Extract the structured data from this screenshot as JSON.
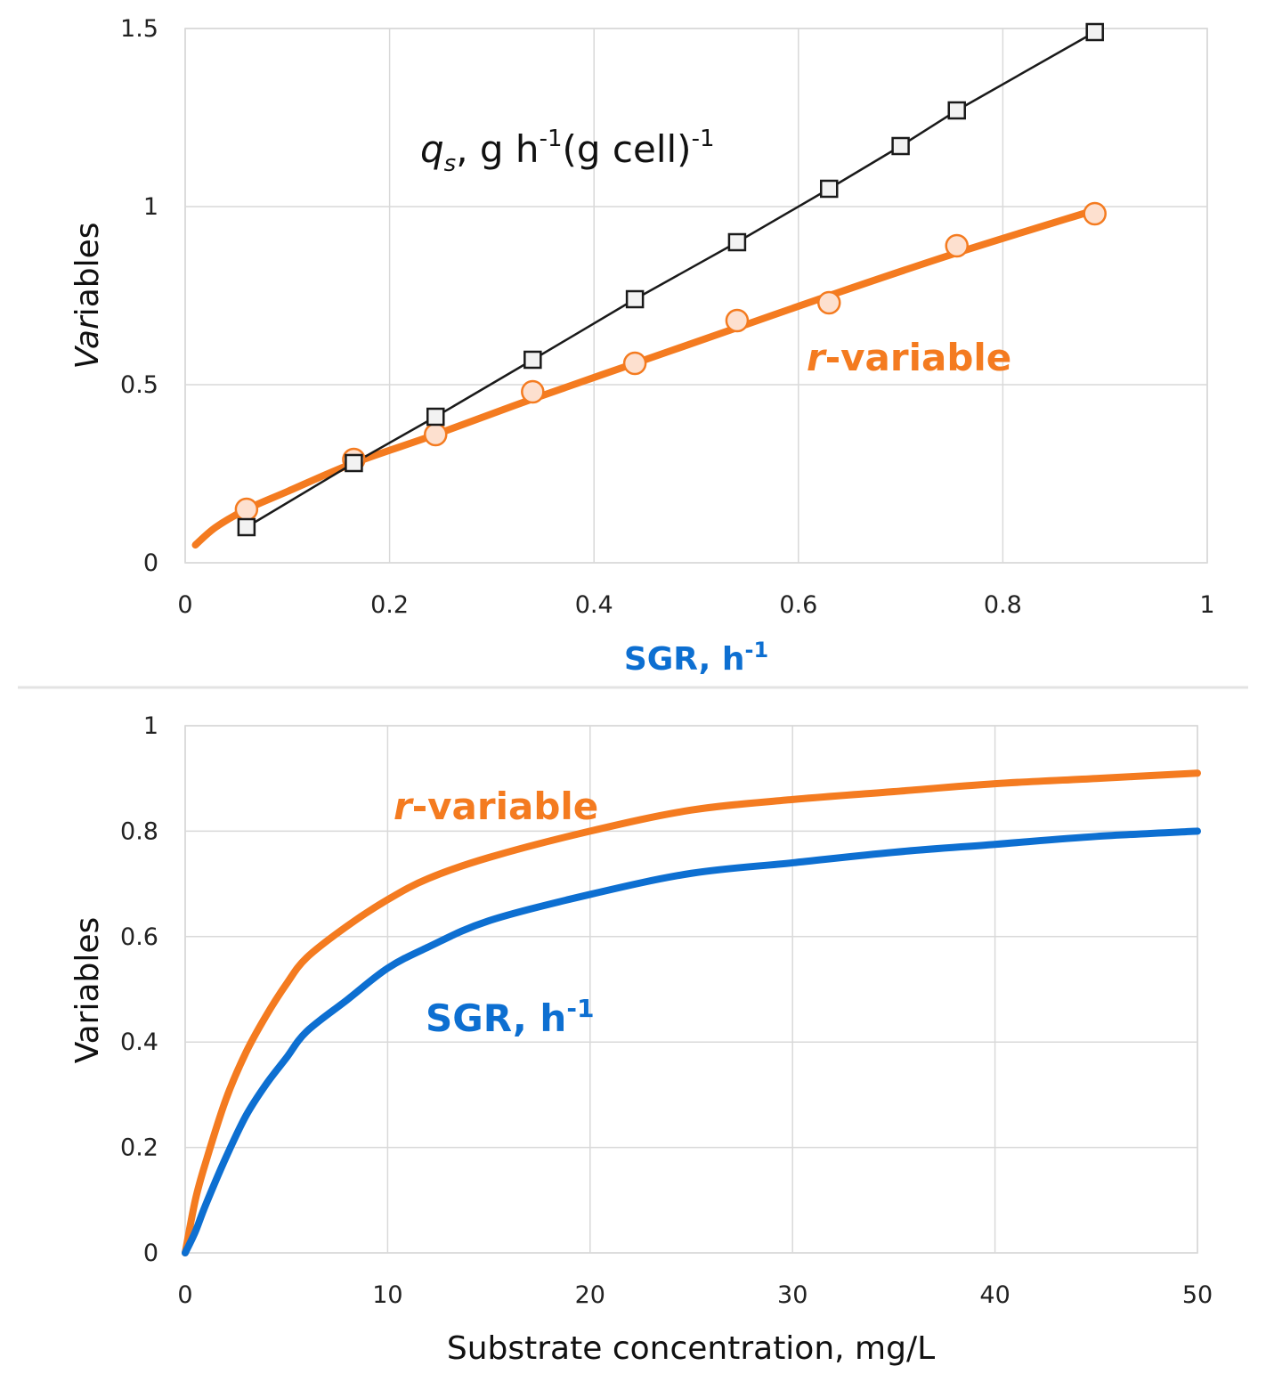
{
  "colors": {
    "orange": "#f47b20",
    "blue": "#0d6fd1",
    "black": "#1a1a1a",
    "marker_fill": "#fde0cf",
    "grid": "#d9d9d9"
  },
  "chart_data": [
    {
      "type": "line",
      "xlabel": "SGR, h",
      "xlabel_sup": "-1",
      "ylabel": "Variables",
      "xlim": [
        0,
        1
      ],
      "ylim": [
        0,
        1.5
      ],
      "x_ticks": [
        "0",
        "0.2",
        "0.4",
        "0.6",
        "0.8",
        "1"
      ],
      "y_ticks": [
        "0",
        "0.5",
        "1",
        "1.5"
      ],
      "grid": true,
      "series": [
        {
          "name": "qs, g h-1(g cell)-1",
          "label_parts": {
            "q": "q",
            "sub": "s",
            "rest1": ", g h",
            "sup1": "-1",
            "rest2": "(g cell)",
            "sup2": "-1"
          },
          "color": "#1a1a1a",
          "marker": "square",
          "points": [
            [
              0.06,
              0.1
            ],
            [
              0.165,
              0.28
            ],
            [
              0.245,
              0.41
            ],
            [
              0.34,
              0.57
            ],
            [
              0.44,
              0.74
            ],
            [
              0.54,
              0.9
            ],
            [
              0.63,
              1.05
            ],
            [
              0.7,
              1.17
            ],
            [
              0.755,
              1.27
            ],
            [
              0.89,
              1.49
            ]
          ]
        },
        {
          "name": "r-variable",
          "label_parts": {
            "r": "r",
            "rest": "-variable"
          },
          "color": "#f47b20",
          "marker": "circle",
          "points": [
            [
              0.06,
              0.15
            ],
            [
              0.165,
              0.29
            ],
            [
              0.245,
              0.36
            ],
            [
              0.34,
              0.48
            ],
            [
              0.44,
              0.56
            ],
            [
              0.54,
              0.68
            ],
            [
              0.63,
              0.73
            ],
            [
              0.755,
              0.89
            ],
            [
              0.89,
              0.98
            ]
          ],
          "curve": [
            [
              0.01,
              0.05
            ],
            [
              0.03,
              0.1
            ],
            [
              0.06,
              0.15
            ],
            [
              0.1,
              0.2
            ],
            [
              0.165,
              0.28
            ],
            [
              0.245,
              0.36
            ],
            [
              0.34,
              0.46
            ],
            [
              0.44,
              0.56
            ],
            [
              0.54,
              0.66
            ],
            [
              0.63,
              0.75
            ],
            [
              0.755,
              0.87
            ],
            [
              0.89,
              0.99
            ]
          ]
        }
      ]
    },
    {
      "type": "line",
      "xlabel": "Substrate concentration, mg/L",
      "ylabel": "Variables",
      "xlim": [
        0,
        50
      ],
      "ylim": [
        0,
        1
      ],
      "x_ticks": [
        "0",
        "10",
        "20",
        "30",
        "40",
        "50"
      ],
      "y_ticks": [
        "0",
        "0.2",
        "0.4",
        "0.6",
        "0.8",
        "1"
      ],
      "grid": true,
      "series": [
        {
          "name": "r-variable",
          "label_parts": {
            "r": "r",
            "rest": "-variable"
          },
          "color": "#f47b20",
          "x": [
            0,
            0.5,
            1,
            2,
            3,
            4,
            5,
            6,
            8,
            10,
            12,
            15,
            20,
            25,
            30,
            35,
            40,
            45,
            50
          ],
          "values": [
            0,
            0.1,
            0.17,
            0.29,
            0.38,
            0.45,
            0.51,
            0.56,
            0.62,
            0.67,
            0.71,
            0.75,
            0.8,
            0.84,
            0.86,
            0.875,
            0.89,
            0.9,
            0.91
          ]
        },
        {
          "name": "SGR, h-1",
          "label_parts": {
            "main": "SGR, h",
            "sup": "-1"
          },
          "color": "#0d6fd1",
          "x": [
            0,
            0.5,
            1,
            2,
            3,
            4,
            5,
            6,
            8,
            10,
            12,
            15,
            20,
            25,
            30,
            35,
            40,
            45,
            50
          ],
          "values": [
            0,
            0.04,
            0.09,
            0.18,
            0.26,
            0.32,
            0.37,
            0.42,
            0.48,
            0.54,
            0.58,
            0.63,
            0.68,
            0.72,
            0.74,
            0.76,
            0.775,
            0.79,
            0.8
          ]
        }
      ]
    }
  ]
}
